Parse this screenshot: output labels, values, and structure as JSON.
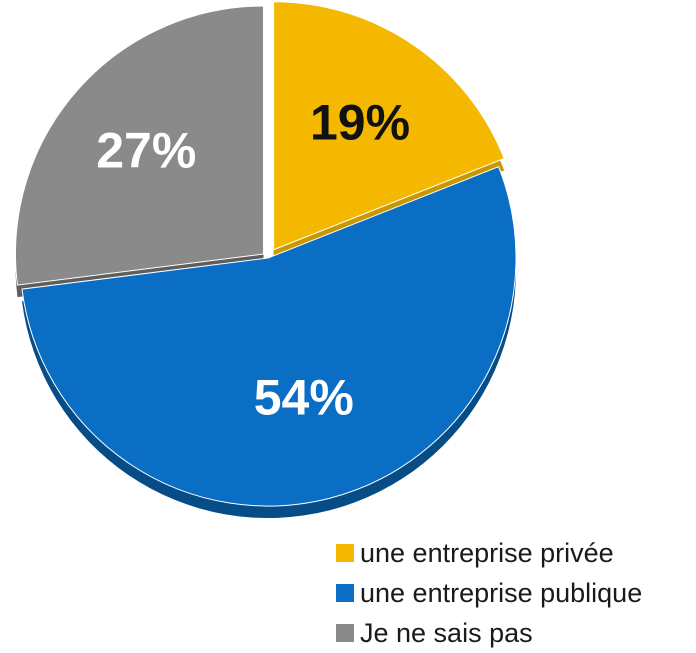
{
  "chart_data": {
    "type": "pie",
    "title": "",
    "slices": [
      {
        "label": "une entreprise privée",
        "value": 19,
        "value_label": "19%",
        "color": "#F5B800",
        "shade": "#C99700",
        "text_color": "#111111"
      },
      {
        "label": "une entreprise publique",
        "value": 54,
        "value_label": "54%",
        "color": "#0A6FC4",
        "shade": "#064C86",
        "text_color": "#FFFFFF"
      },
      {
        "label": "Je ne sais pas",
        "value": 27,
        "value_label": "27%",
        "color": "#8A8A8A",
        "shade": "#5E5E5E",
        "text_color": "#FFFFFF"
      }
    ],
    "legend_position": "bottom-right"
  }
}
